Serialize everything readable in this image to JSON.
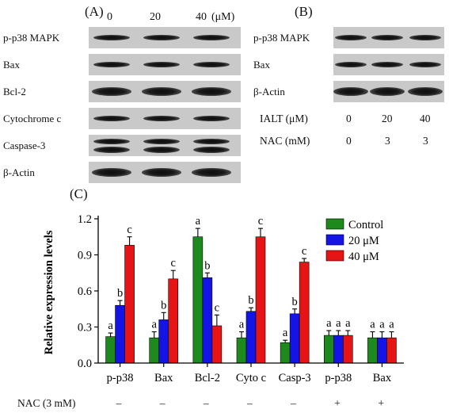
{
  "panelA": {
    "label": "(A)",
    "concentrations": [
      "0",
      "20",
      "40"
    ],
    "unit": "(μM)",
    "rows": [
      {
        "label": "p-p38 MAPK",
        "type": "thin"
      },
      {
        "label": "Bax",
        "type": "thin"
      },
      {
        "label": "Bcl-2",
        "type": "thick"
      },
      {
        "label": "Cytochrome c",
        "type": "thin"
      },
      {
        "label": "Caspase-3",
        "type": "double"
      },
      {
        "label": "β-Actin",
        "type": "thick"
      }
    ]
  },
  "panelB": {
    "label": "(B)",
    "rows": [
      {
        "label": "p-p38 MAPK",
        "type": "thin"
      },
      {
        "label": "Bax",
        "type": "thin"
      },
      {
        "label": "β-Actin",
        "type": "thick"
      }
    ],
    "conditions": [
      {
        "label": "IALT (μM)",
        "values": [
          "0",
          "20",
          "40"
        ]
      },
      {
        "label": "NAC (mM)",
        "values": [
          "0",
          "3",
          "3"
        ]
      }
    ]
  },
  "panelC": {
    "label": "(C)",
    "nac_label": "NAC (3 mM)",
    "nac_values": [
      "–",
      "–",
      "–",
      "–",
      "–",
      "+",
      "+"
    ],
    "colors": {
      "control": "#1e8a1e",
      "mid": "#1414e6",
      "high": "#e61414"
    }
  },
  "chart_data": {
    "type": "bar",
    "categories": [
      "p-p38",
      "Bax",
      "Bcl-2",
      "Cyto c",
      "Casp-3",
      "p-p38",
      "Bax"
    ],
    "series": [
      {
        "name": "Control",
        "values": [
          0.22,
          0.21,
          1.05,
          0.21,
          0.17,
          0.23,
          0.21
        ],
        "errors": [
          0.03,
          0.05,
          0.07,
          0.05,
          0.02,
          0.04,
          0.05
        ],
        "labels": [
          "a",
          "a",
          "a",
          "a",
          "a",
          "a",
          "a"
        ]
      },
      {
        "name": "20 μM",
        "values": [
          0.48,
          0.36,
          0.71,
          0.43,
          0.41,
          0.23,
          0.21
        ],
        "errors": [
          0.04,
          0.06,
          0.04,
          0.03,
          0.04,
          0.04,
          0.05
        ],
        "labels": [
          "b",
          "b",
          "b",
          "b",
          "b",
          "a",
          "a"
        ]
      },
      {
        "name": "40 μM",
        "values": [
          0.98,
          0.7,
          0.31,
          1.05,
          0.84,
          0.23,
          0.21
        ],
        "errors": [
          0.07,
          0.07,
          0.09,
          0.07,
          0.03,
          0.04,
          0.05
        ],
        "labels": [
          "c",
          "c",
          "c",
          "c",
          "c",
          "a",
          "a"
        ]
      }
    ],
    "ylabel": "Relative expression levels",
    "ylim": [
      0,
      1.2
    ],
    "yticks": [
      "0.0",
      "0.3",
      "0.6",
      "0.9",
      "1.2"
    ],
    "legend": "top-right"
  }
}
